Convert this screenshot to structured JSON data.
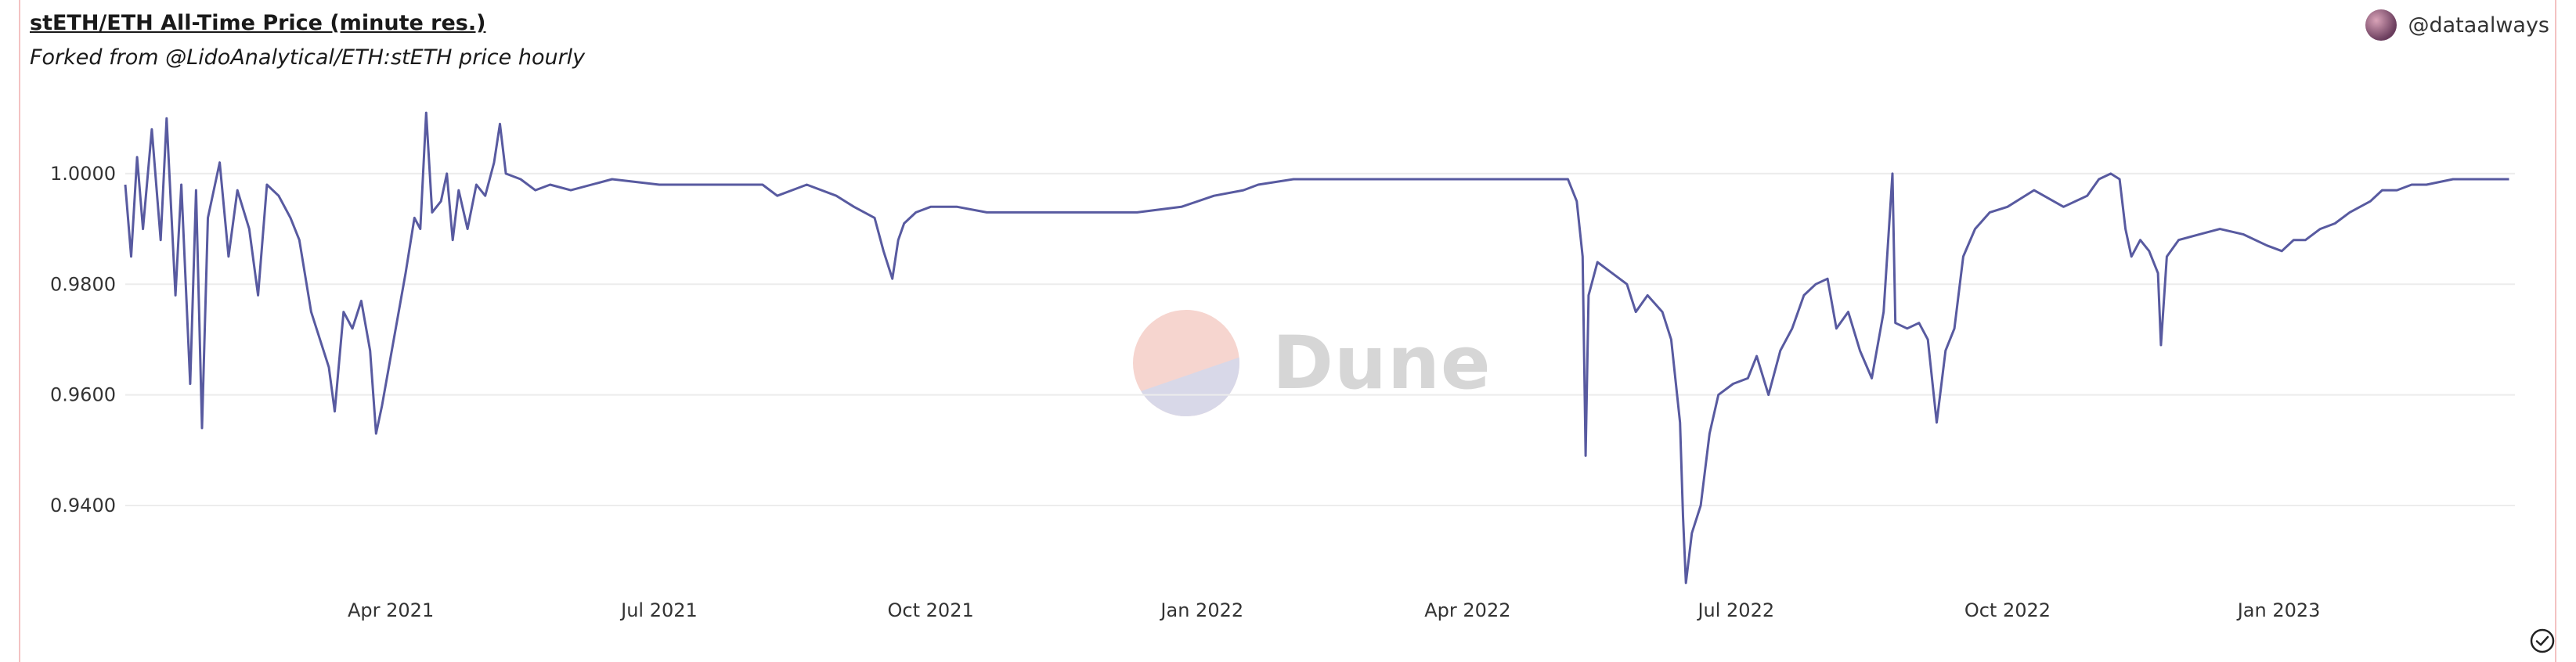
{
  "header": {
    "title": "stETH/ETH All-Time Price (minute res.)",
    "subtitle": "Forked from @LidoAnalytical/ETH:stETH price hourly",
    "author": "@dataalways"
  },
  "watermark": {
    "text": "Dune"
  },
  "colors": {
    "line": "#585aa0",
    "grid": "#ececec",
    "frame": "#f3c2c2"
  },
  "icons": {
    "avatar": "user-avatar",
    "check": "check-circle-icon"
  },
  "chart_data": {
    "type": "line",
    "title": "stETH/ETH All-Time Price (minute res.)",
    "xlabel": "",
    "ylabel": "",
    "xlim": [
      "2021-01-01",
      "2023-03-22"
    ],
    "ylim": [
      0.925,
      1.013
    ],
    "grid": "horizontal",
    "legend": "none",
    "y_ticks": [
      {
        "value": 1.0,
        "label": "1.0000"
      },
      {
        "value": 0.98,
        "label": "0.9800"
      },
      {
        "value": 0.96,
        "label": "0.9600"
      },
      {
        "value": 0.94,
        "label": "0.9400"
      }
    ],
    "x_ticks": [
      {
        "date": "2021-04-01",
        "label": "Apr 2021"
      },
      {
        "date": "2021-07-01",
        "label": "Jul 2021"
      },
      {
        "date": "2021-10-01",
        "label": "Oct 2021"
      },
      {
        "date": "2022-01-01",
        "label": "Jan 2022"
      },
      {
        "date": "2022-04-01",
        "label": "Apr 2022"
      },
      {
        "date": "2022-07-01",
        "label": "Jul 2022"
      },
      {
        "date": "2022-10-01",
        "label": "Oct 2022"
      },
      {
        "date": "2023-01-01",
        "label": "Jan 2023"
      }
    ],
    "series": [
      {
        "points": [
          [
            "2021-01-01",
            0.998
          ],
          [
            "2021-01-03",
            0.985
          ],
          [
            "2021-01-05",
            1.003
          ],
          [
            "2021-01-07",
            0.99
          ],
          [
            "2021-01-10",
            1.008
          ],
          [
            "2021-01-13",
            0.988
          ],
          [
            "2021-01-15",
            1.01
          ],
          [
            "2021-01-18",
            0.978
          ],
          [
            "2021-01-20",
            0.998
          ],
          [
            "2021-01-23",
            0.962
          ],
          [
            "2021-01-25",
            0.997
          ],
          [
            "2021-01-27",
            0.954
          ],
          [
            "2021-01-29",
            0.992
          ],
          [
            "2021-02-02",
            1.002
          ],
          [
            "2021-02-05",
            0.985
          ],
          [
            "2021-02-08",
            0.997
          ],
          [
            "2021-02-12",
            0.99
          ],
          [
            "2021-02-15",
            0.978
          ],
          [
            "2021-02-18",
            0.998
          ],
          [
            "2021-02-22",
            0.996
          ],
          [
            "2021-02-26",
            0.992
          ],
          [
            "2021-03-01",
            0.988
          ],
          [
            "2021-03-05",
            0.975
          ],
          [
            "2021-03-08",
            0.97
          ],
          [
            "2021-03-11",
            0.965
          ],
          [
            "2021-03-13",
            0.957
          ],
          [
            "2021-03-16",
            0.975
          ],
          [
            "2021-03-19",
            0.972
          ],
          [
            "2021-03-22",
            0.977
          ],
          [
            "2021-03-25",
            0.968
          ],
          [
            "2021-03-27",
            0.953
          ],
          [
            "2021-03-29",
            0.958
          ],
          [
            "2021-04-02",
            0.97
          ],
          [
            "2021-04-06",
            0.982
          ],
          [
            "2021-04-09",
            0.992
          ],
          [
            "2021-04-11",
            0.99
          ],
          [
            "2021-04-13",
            1.011
          ],
          [
            "2021-04-15",
            0.993
          ],
          [
            "2021-04-18",
            0.995
          ],
          [
            "2021-04-20",
            1.0
          ],
          [
            "2021-04-22",
            0.988
          ],
          [
            "2021-04-24",
            0.997
          ],
          [
            "2021-04-27",
            0.99
          ],
          [
            "2021-04-30",
            0.998
          ],
          [
            "2021-05-03",
            0.996
          ],
          [
            "2021-05-06",
            1.002
          ],
          [
            "2021-05-08",
            1.009
          ],
          [
            "2021-05-10",
            1.0
          ],
          [
            "2021-05-15",
            0.999
          ],
          [
            "2021-05-20",
            0.997
          ],
          [
            "2021-05-25",
            0.998
          ],
          [
            "2021-06-01",
            0.997
          ],
          [
            "2021-06-15",
            0.999
          ],
          [
            "2021-07-01",
            0.998
          ],
          [
            "2021-07-20",
            0.998
          ],
          [
            "2021-08-05",
            0.998
          ],
          [
            "2021-08-10",
            0.996
          ],
          [
            "2021-08-20",
            0.998
          ],
          [
            "2021-08-30",
            0.996
          ],
          [
            "2021-09-05",
            0.994
          ],
          [
            "2021-09-12",
            0.992
          ],
          [
            "2021-09-15",
            0.986
          ],
          [
            "2021-09-18",
            0.981
          ],
          [
            "2021-09-20",
            0.988
          ],
          [
            "2021-09-22",
            0.991
          ],
          [
            "2021-09-26",
            0.993
          ],
          [
            "2021-10-01",
            0.994
          ],
          [
            "2021-10-10",
            0.994
          ],
          [
            "2021-10-20",
            0.993
          ],
          [
            "2021-11-01",
            0.993
          ],
          [
            "2021-11-20",
            0.993
          ],
          [
            "2021-12-10",
            0.993
          ],
          [
            "2021-12-25",
            0.994
          ],
          [
            "2022-01-05",
            0.996
          ],
          [
            "2022-01-15",
            0.997
          ],
          [
            "2022-01-20",
            0.998
          ],
          [
            "2022-02-01",
            0.999
          ],
          [
            "2022-02-15",
            0.999
          ],
          [
            "2022-03-01",
            0.999
          ],
          [
            "2022-03-20",
            0.999
          ],
          [
            "2022-04-10",
            0.999
          ],
          [
            "2022-04-25",
            0.999
          ],
          [
            "2022-05-05",
            0.999
          ],
          [
            "2022-05-08",
            0.995
          ],
          [
            "2022-05-10",
            0.985
          ],
          [
            "2022-05-11",
            0.949
          ],
          [
            "2022-05-12",
            0.978
          ],
          [
            "2022-05-15",
            0.984
          ],
          [
            "2022-05-20",
            0.982
          ],
          [
            "2022-05-25",
            0.98
          ],
          [
            "2022-05-28",
            0.975
          ],
          [
            "2022-06-01",
            0.978
          ],
          [
            "2022-06-06",
            0.975
          ],
          [
            "2022-06-09",
            0.97
          ],
          [
            "2022-06-12",
            0.955
          ],
          [
            "2022-06-13",
            0.938
          ],
          [
            "2022-06-14",
            0.926
          ],
          [
            "2022-06-16",
            0.935
          ],
          [
            "2022-06-19",
            0.94
          ],
          [
            "2022-06-22",
            0.953
          ],
          [
            "2022-06-25",
            0.96
          ],
          [
            "2022-06-30",
            0.962
          ],
          [
            "2022-07-05",
            0.963
          ],
          [
            "2022-07-08",
            0.967
          ],
          [
            "2022-07-12",
            0.96
          ],
          [
            "2022-07-16",
            0.968
          ],
          [
            "2022-07-20",
            0.972
          ],
          [
            "2022-07-24",
            0.978
          ],
          [
            "2022-07-28",
            0.98
          ],
          [
            "2022-08-01",
            0.981
          ],
          [
            "2022-08-04",
            0.972
          ],
          [
            "2022-08-08",
            0.975
          ],
          [
            "2022-08-12",
            0.968
          ],
          [
            "2022-08-16",
            0.963
          ],
          [
            "2022-08-20",
            0.975
          ],
          [
            "2022-08-23",
            1.0
          ],
          [
            "2022-08-24",
            0.973
          ],
          [
            "2022-08-28",
            0.972
          ],
          [
            "2022-09-01",
            0.973
          ],
          [
            "2022-09-04",
            0.97
          ],
          [
            "2022-09-07",
            0.955
          ],
          [
            "2022-09-10",
            0.968
          ],
          [
            "2022-09-13",
            0.972
          ],
          [
            "2022-09-16",
            0.985
          ],
          [
            "2022-09-20",
            0.99
          ],
          [
            "2022-09-25",
            0.993
          ],
          [
            "2022-10-01",
            0.994
          ],
          [
            "2022-10-10",
            0.997
          ],
          [
            "2022-10-20",
            0.994
          ],
          [
            "2022-10-28",
            0.996
          ],
          [
            "2022-11-01",
            0.999
          ],
          [
            "2022-11-05",
            1.0
          ],
          [
            "2022-11-08",
            0.999
          ],
          [
            "2022-11-10",
            0.99
          ],
          [
            "2022-11-12",
            0.985
          ],
          [
            "2022-11-15",
            0.988
          ],
          [
            "2022-11-18",
            0.986
          ],
          [
            "2022-11-21",
            0.982
          ],
          [
            "2022-11-22",
            0.969
          ],
          [
            "2022-11-24",
            0.985
          ],
          [
            "2022-11-28",
            0.988
          ],
          [
            "2022-12-05",
            0.989
          ],
          [
            "2022-12-12",
            0.99
          ],
          [
            "2022-12-20",
            0.989
          ],
          [
            "2022-12-28",
            0.987
          ],
          [
            "2023-01-02",
            0.986
          ],
          [
            "2023-01-06",
            0.988
          ],
          [
            "2023-01-10",
            0.988
          ],
          [
            "2023-01-15",
            0.99
          ],
          [
            "2023-01-20",
            0.991
          ],
          [
            "2023-01-25",
            0.993
          ],
          [
            "2023-02-01",
            0.995
          ],
          [
            "2023-02-05",
            0.997
          ],
          [
            "2023-02-10",
            0.997
          ],
          [
            "2023-02-15",
            0.998
          ],
          [
            "2023-02-20",
            0.998
          ],
          [
            "2023-03-01",
            0.999
          ],
          [
            "2023-03-10",
            0.999
          ],
          [
            "2023-03-20",
            0.999
          ]
        ]
      }
    ]
  }
}
